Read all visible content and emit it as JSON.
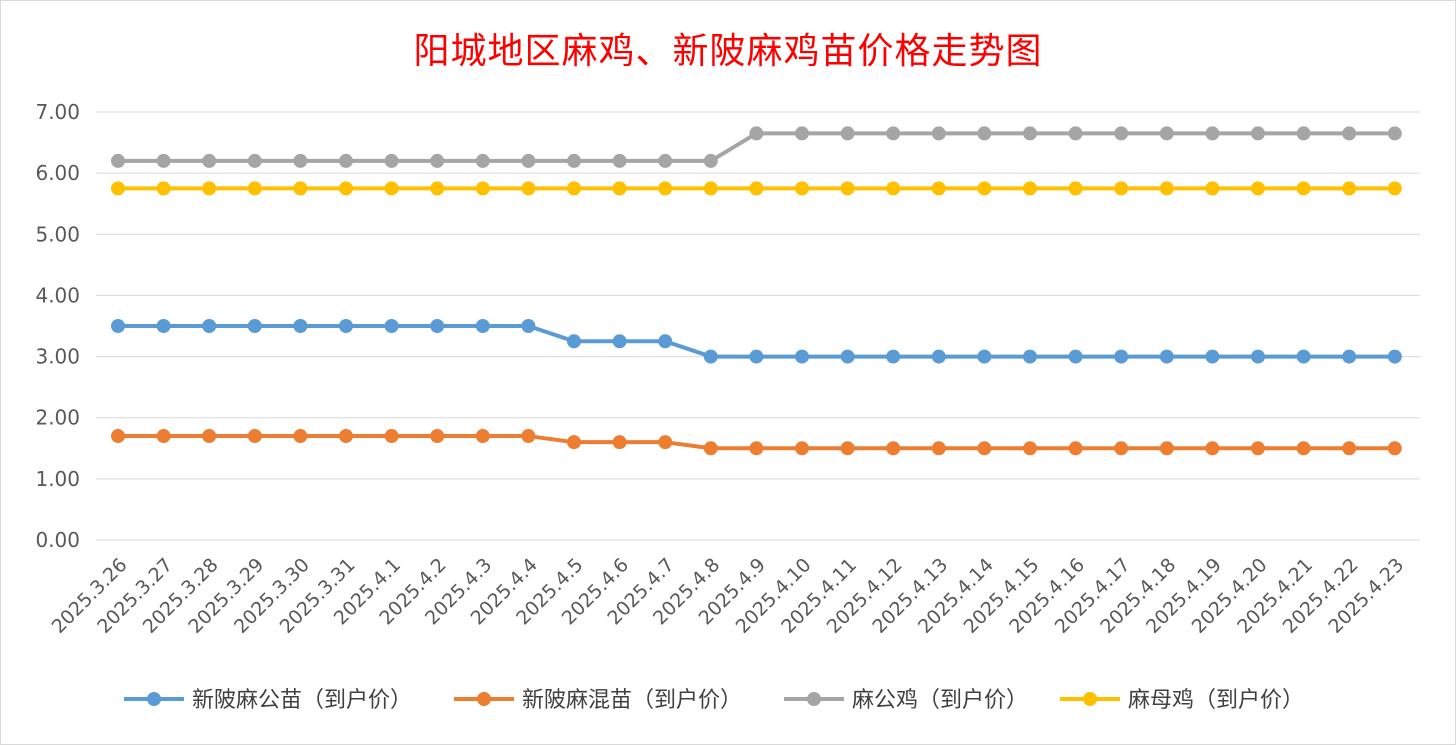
{
  "chart_data": {
    "type": "line",
    "title": "阳城地区麻鸡、新陂麻鸡苗价格走势图",
    "xlabel": "",
    "ylabel": "",
    "ylim": [
      0,
      7
    ],
    "yticks": [
      "0.00",
      "1.00",
      "2.00",
      "3.00",
      "4.00",
      "5.00",
      "6.00",
      "7.00"
    ],
    "grid": true,
    "legend_position": "bottom",
    "categories": [
      "2025.3.26",
      "2025.3.27",
      "2025.3.28",
      "2025.3.29",
      "2025.3.30",
      "2025.3.31",
      "2025.4.1",
      "2025.4.2",
      "2025.4.3",
      "2025.4.4",
      "2025.4.5",
      "2025.4.6",
      "2025.4.7",
      "2025.4.8",
      "2025.4.9",
      "2025.4.10",
      "2025.4.11",
      "2025.4.12",
      "2025.4.13",
      "2025.4.14",
      "2025.4.15",
      "2025.4.16",
      "2025.4.17",
      "2025.4.18",
      "2025.4.19",
      "2025.4.20",
      "2025.4.21",
      "2025.4.22",
      "2025.4.23"
    ],
    "series": [
      {
        "name": "新陂麻公苗（到户价）",
        "color": "#5b9bd5",
        "values": [
          3.5,
          3.5,
          3.5,
          3.5,
          3.5,
          3.5,
          3.5,
          3.5,
          3.5,
          3.5,
          3.25,
          3.25,
          3.25,
          3.0,
          3.0,
          3.0,
          3.0,
          3.0,
          3.0,
          3.0,
          3.0,
          3.0,
          3.0,
          3.0,
          3.0,
          3.0,
          3.0,
          3.0,
          3.0
        ]
      },
      {
        "name": "新陂麻混苗（到户价）",
        "color": "#ed7d31",
        "values": [
          1.7,
          1.7,
          1.7,
          1.7,
          1.7,
          1.7,
          1.7,
          1.7,
          1.7,
          1.7,
          1.6,
          1.6,
          1.6,
          1.5,
          1.5,
          1.5,
          1.5,
          1.5,
          1.5,
          1.5,
          1.5,
          1.5,
          1.5,
          1.5,
          1.5,
          1.5,
          1.5,
          1.5,
          1.5
        ]
      },
      {
        "name": "麻公鸡（到户价）",
        "color": "#a5a5a5",
        "values": [
          6.2,
          6.2,
          6.2,
          6.2,
          6.2,
          6.2,
          6.2,
          6.2,
          6.2,
          6.2,
          6.2,
          6.2,
          6.2,
          6.2,
          6.65,
          6.65,
          6.65,
          6.65,
          6.65,
          6.65,
          6.65,
          6.65,
          6.65,
          6.65,
          6.65,
          6.65,
          6.65,
          6.65,
          6.65
        ]
      },
      {
        "name": "麻母鸡（到户价）",
        "color": "#ffc000",
        "values": [
          5.75,
          5.75,
          5.75,
          5.75,
          5.75,
          5.75,
          5.75,
          5.75,
          5.75,
          5.75,
          5.75,
          5.75,
          5.75,
          5.75,
          5.75,
          5.75,
          5.75,
          5.75,
          5.75,
          5.75,
          5.75,
          5.75,
          5.75,
          5.75,
          5.75,
          5.75,
          5.75,
          5.75,
          5.75
        ]
      }
    ]
  }
}
